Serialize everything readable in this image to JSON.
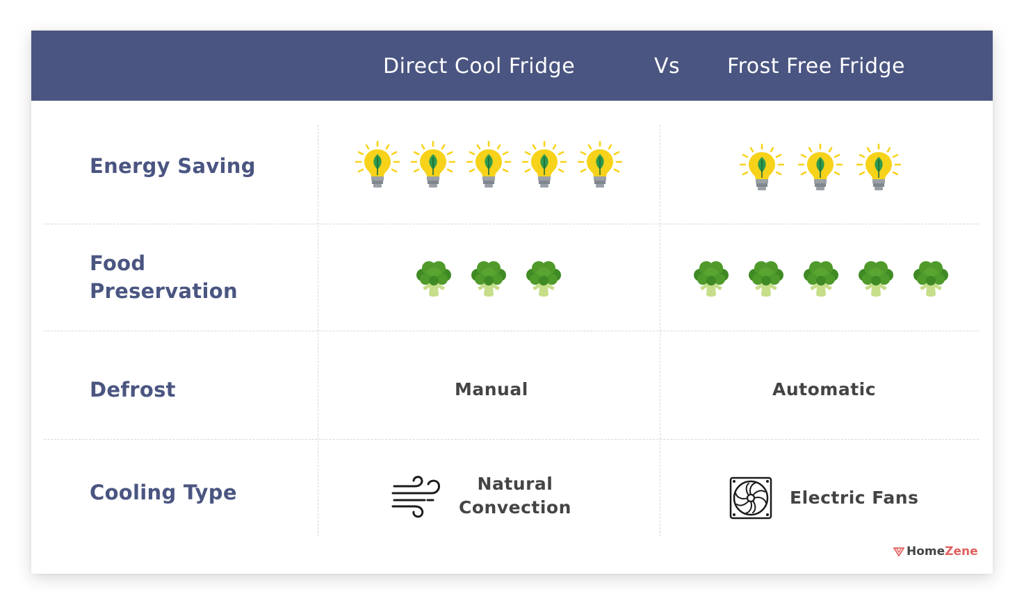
{
  "header": {
    "left_title": "Direct Cool Fridge",
    "vs": "Vs",
    "right_title": "Frost Free Fridge"
  },
  "rows": [
    {
      "label": "Energy Saving",
      "left": {
        "icon": "lightbulb-leaf-icon",
        "count": 5
      },
      "right": {
        "icon": "lightbulb-leaf-icon",
        "count": 3
      }
    },
    {
      "label_lines": [
        "Food",
        "Preservation"
      ],
      "left": {
        "icon": "broccoli-icon",
        "count": 3
      },
      "right": {
        "icon": "broccoli-icon",
        "count": 5
      }
    },
    {
      "label": "Defrost",
      "left": {
        "text": "Manual"
      },
      "right": {
        "text": "Automatic"
      }
    },
    {
      "label": "Cooling Type",
      "left": {
        "icon": "wind-icon",
        "text_lines": [
          "Natural",
          "Convection"
        ]
      },
      "right": {
        "icon": "fan-icon",
        "text": "Electric Fans"
      }
    }
  ],
  "brand": {
    "logo_icon": "homezene-logo-icon",
    "home": "Home",
    "zene": "Zene"
  },
  "colors": {
    "header_bg": "#4a5581",
    "label": "#4a5581",
    "text": "#444444",
    "brand_accent": "#e0605e",
    "bulb": "#f7d21a",
    "leaf": "#2e9a4f",
    "broccoli": "#4f9a2a"
  }
}
